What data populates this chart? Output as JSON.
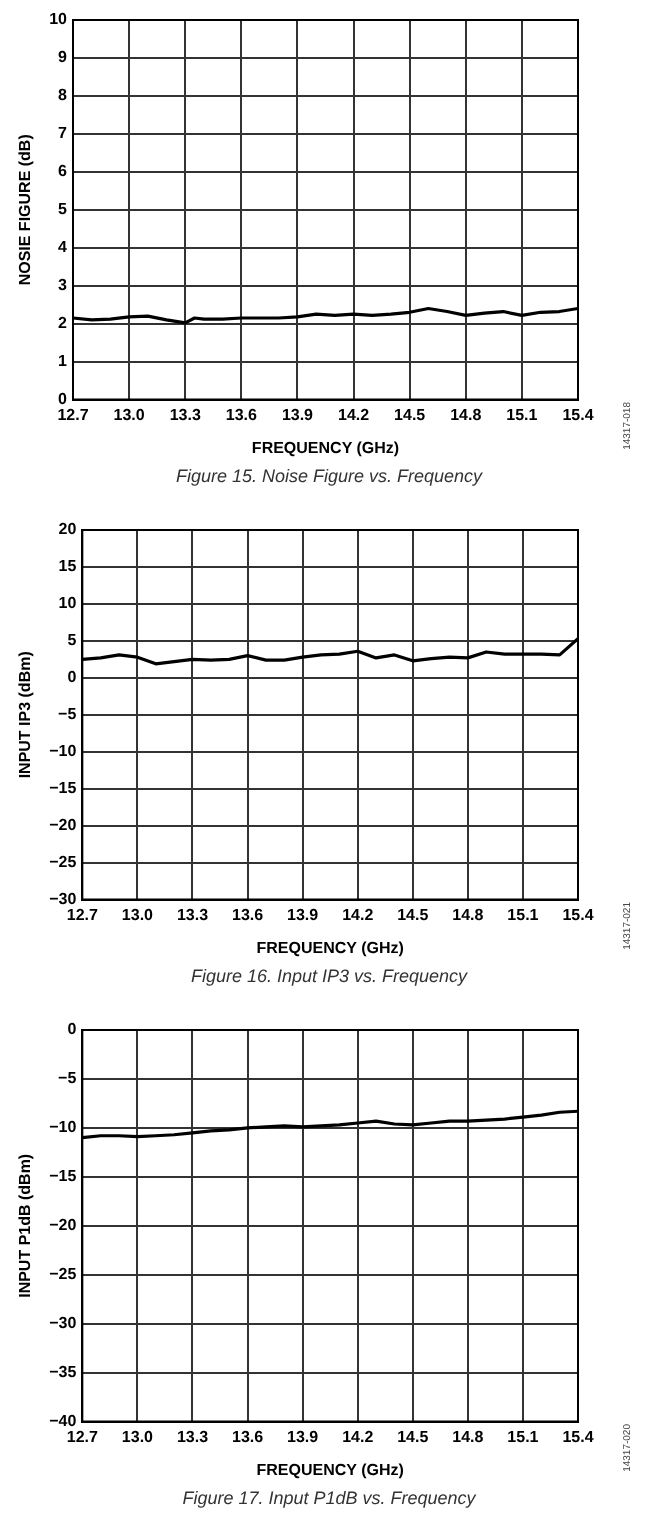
{
  "chart_data": [
    {
      "type": "line",
      "title": "Figure 15. Noise Figure vs. Frequency",
      "xlabel": "FREQUENCY (GHz)",
      "ylabel": "NOSIE FIGURE (dB)",
      "annotations": [
        "14317-018"
      ],
      "x": [
        12.7,
        12.8,
        12.9,
        13.0,
        13.1,
        13.2,
        13.3,
        13.35,
        13.4,
        13.5,
        13.6,
        13.7,
        13.8,
        13.9,
        14.0,
        14.1,
        14.2,
        14.3,
        14.4,
        14.5,
        14.6,
        14.7,
        14.8,
        14.9,
        15.0,
        15.1,
        15.2,
        15.3,
        15.4
      ],
      "series": [
        {
          "color": "#000000",
          "values": [
            2.15,
            2.1,
            2.12,
            2.18,
            2.2,
            2.1,
            2.02,
            2.15,
            2.12,
            2.12,
            2.15,
            2.15,
            2.15,
            2.18,
            2.25,
            2.22,
            2.25,
            2.22,
            2.25,
            2.3,
            2.4,
            2.32,
            2.22,
            2.28,
            2.32,
            2.22,
            2.3,
            2.32,
            2.4
          ]
        }
      ],
      "xlim": [
        12.7,
        15.4
      ],
      "xticks": [
        {
          "value": 12.7,
          "label": "12.7"
        },
        {
          "value": 13.0,
          "label": "13.0"
        },
        {
          "value": 13.3,
          "label": "13.3"
        },
        {
          "value": 13.6,
          "label": "13.6"
        },
        {
          "value": 13.9,
          "label": "13.9"
        },
        {
          "value": 14.2,
          "label": "14.2"
        },
        {
          "value": 14.5,
          "label": "14.5"
        },
        {
          "value": 14.8,
          "label": "14.8"
        },
        {
          "value": 15.1,
          "label": "15.1"
        },
        {
          "value": 15.4,
          "label": "15.4"
        }
      ],
      "ylim": [
        0,
        10
      ],
      "yticks": [
        0,
        1,
        2,
        3,
        4,
        5,
        6,
        7,
        8,
        9,
        10
      ],
      "grid": true,
      "line_style": "solid"
    },
    {
      "type": "line",
      "title": "Figure 16. Input IP3 vs. Frequency",
      "xlabel": "FREQUENCY (GHz)",
      "ylabel": "INPUT IP3 (dBm)",
      "annotations": [
        "14317-021"
      ],
      "x": [
        12.7,
        12.8,
        12.9,
        13.0,
        13.1,
        13.2,
        13.3,
        13.4,
        13.5,
        13.6,
        13.7,
        13.8,
        13.9,
        14.0,
        14.1,
        14.2,
        14.3,
        14.4,
        14.5,
        14.6,
        14.7,
        14.8,
        14.9,
        15.0,
        15.1,
        15.2,
        15.3,
        15.4
      ],
      "series": [
        {
          "color": "#000000",
          "values": [
            2.5,
            2.7,
            3.1,
            2.8,
            1.9,
            2.2,
            2.5,
            2.4,
            2.5,
            3.0,
            2.4,
            2.4,
            2.8,
            3.1,
            3.2,
            3.6,
            2.7,
            3.1,
            2.3,
            2.6,
            2.8,
            2.7,
            3.5,
            3.2,
            3.2,
            3.2,
            3.1,
            5.3
          ]
        }
      ],
      "xlim": [
        12.7,
        15.4
      ],
      "xticks": [
        {
          "value": 12.7,
          "label": "12.7"
        },
        {
          "value": 13.0,
          "label": "13.0"
        },
        {
          "value": 13.3,
          "label": "13.3"
        },
        {
          "value": 13.6,
          "label": "13.6"
        },
        {
          "value": 13.9,
          "label": "13.9"
        },
        {
          "value": 14.2,
          "label": "14.2"
        },
        {
          "value": 14.5,
          "label": "14.5"
        },
        {
          "value": 14.8,
          "label": "14.8"
        },
        {
          "value": 15.1,
          "label": "15.1"
        },
        {
          "value": 15.4,
          "label": "15.4"
        }
      ],
      "ylim": [
        -30,
        20
      ],
      "yticks": [
        {
          "value": -30,
          "label": "−30"
        },
        {
          "value": -25,
          "label": "−25"
        },
        {
          "value": -20,
          "label": "−20"
        },
        {
          "value": -15,
          "label": "−15"
        },
        {
          "value": -10,
          "label": "−10"
        },
        {
          "value": -5,
          "label": "−5"
        },
        0,
        5,
        10,
        15,
        20
      ],
      "grid": true,
      "line_style": "solid"
    },
    {
      "type": "line",
      "title": "Figure 17. Input P1dB vs. Frequency",
      "xlabel": "FREQUENCY (GHz)",
      "ylabel": "INPUT P1dB (dBm)",
      "annotations": [
        "14317-020"
      ],
      "x": [
        12.7,
        12.8,
        12.9,
        13.0,
        13.1,
        13.2,
        13.3,
        13.4,
        13.5,
        13.6,
        13.7,
        13.8,
        13.9,
        14.0,
        14.1,
        14.2,
        14.3,
        14.4,
        14.5,
        14.6,
        14.7,
        14.8,
        14.9,
        15.0,
        15.1,
        15.2,
        15.3,
        15.4
      ],
      "series": [
        {
          "color": "#000000",
          "values": [
            -11.0,
            -10.8,
            -10.8,
            -10.9,
            -10.8,
            -10.7,
            -10.5,
            -10.3,
            -10.2,
            -10.0,
            -9.9,
            -9.8,
            -9.9,
            -9.8,
            -9.7,
            -9.5,
            -9.3,
            -9.6,
            -9.7,
            -9.5,
            -9.3,
            -9.3,
            -9.2,
            -9.1,
            -8.9,
            -8.7,
            -8.4,
            -8.3
          ]
        }
      ],
      "xlim": [
        12.7,
        15.4
      ],
      "xticks": [
        {
          "value": 12.7,
          "label": "12.7"
        },
        {
          "value": 13.0,
          "label": "13.0"
        },
        {
          "value": 13.3,
          "label": "13.3"
        },
        {
          "value": 13.6,
          "label": "13.6"
        },
        {
          "value": 13.9,
          "label": "13.9"
        },
        {
          "value": 14.2,
          "label": "14.2"
        },
        {
          "value": 14.5,
          "label": "14.5"
        },
        {
          "value": 14.8,
          "label": "14.8"
        },
        {
          "value": 15.1,
          "label": "15.1"
        },
        {
          "value": 15.4,
          "label": "15.4"
        }
      ],
      "ylim": [
        -40,
        0
      ],
      "yticks": [
        {
          "value": -40,
          "label": "−40"
        },
        {
          "value": -35,
          "label": "−35"
        },
        {
          "value": -30,
          "label": "−30"
        },
        {
          "value": -25,
          "label": "−25"
        },
        {
          "value": -20,
          "label": "−20"
        },
        {
          "value": -15,
          "label": "−15"
        },
        {
          "value": -10,
          "label": "−10"
        },
        {
          "value": -5,
          "label": "−5"
        },
        0
      ],
      "grid": true,
      "line_style": "solid"
    }
  ]
}
